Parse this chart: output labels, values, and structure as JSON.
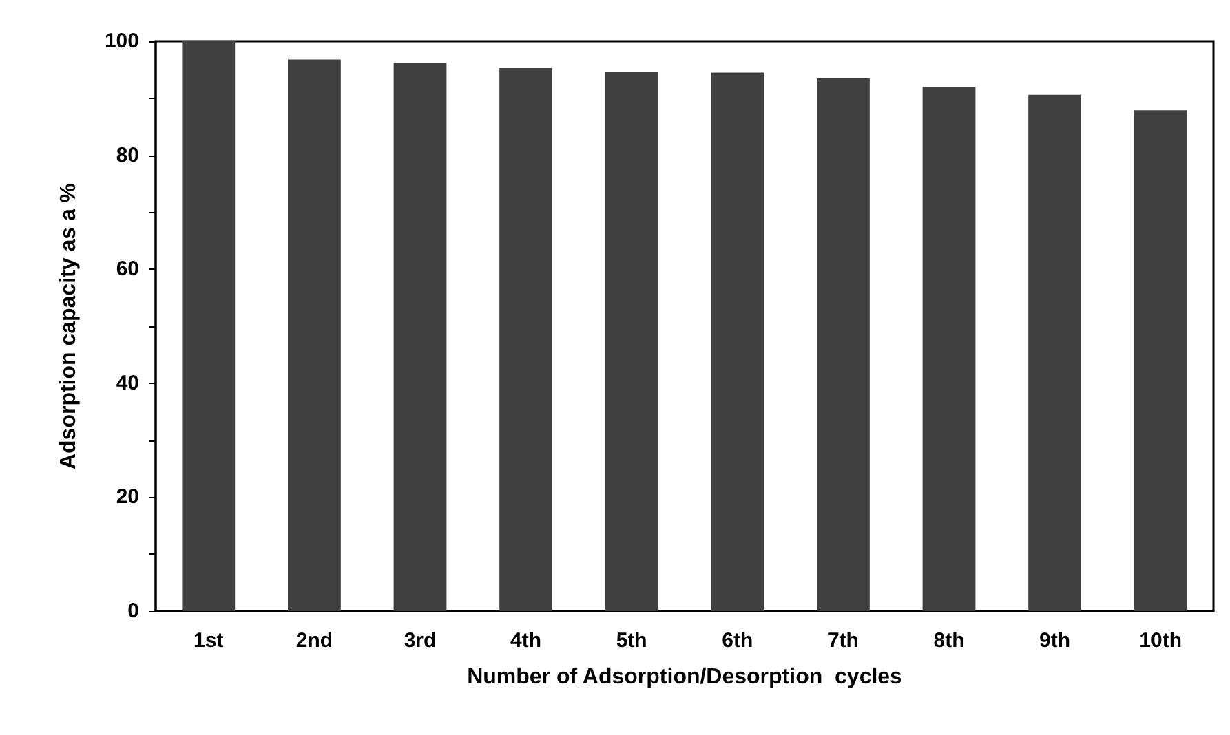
{
  "chart_data": {
    "type": "bar",
    "xlabel": "Number of Adsorption/Desorption  cycles",
    "ylabel": "Adsorption capacity as a %",
    "categories": [
      "1st",
      "2nd",
      "3rd",
      "4th",
      "5th",
      "6th",
      "7th",
      "8th",
      "9th",
      "10th"
    ],
    "values": [
      100,
      96.8,
      96.2,
      95.3,
      94.7,
      94.5,
      93.5,
      92.0,
      90.6,
      87.9
    ],
    "color": "#404040",
    "ylim": [
      0,
      100
    ],
    "yticks": [
      0,
      {
        "value": 10,
        "label": null
      },
      20,
      {
        "value": 30,
        "label": null
      },
      40,
      {
        "value": 50,
        "label": null
      },
      60,
      {
        "value": 70,
        "label": null
      },
      80,
      {
        "value": 90,
        "label": null
      },
      100
    ],
    "grid": false
  }
}
